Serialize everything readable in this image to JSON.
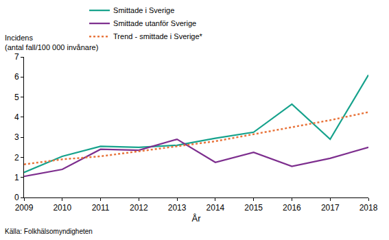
{
  "chart_data": {
    "type": "line",
    "ylabel": "Incidens\n(antal fall/100 000 invånare)",
    "xlabel": "År",
    "source": "Källa: Folkhälsomyndigheten",
    "x": [
      2009,
      2010,
      2011,
      2012,
      2013,
      2014,
      2015,
      2016,
      2017,
      2018
    ],
    "series": [
      {
        "name": "Smittade i Sverige",
        "color": "#16a28c",
        "line_style": "solid",
        "values": [
          1.25,
          2.05,
          2.55,
          2.5,
          2.6,
          2.95,
          3.25,
          4.65,
          2.9,
          6.1
        ]
      },
      {
        "name": "Smittade utanför Sverige",
        "color": "#7d2e8e",
        "line_style": "solid",
        "values": [
          1.05,
          1.4,
          2.4,
          2.35,
          2.9,
          1.75,
          2.25,
          1.55,
          1.95,
          2.5
        ]
      },
      {
        "name": "Trend - smittade i Sverige*",
        "color": "#e8743b",
        "line_style": "dotted",
        "values": [
          1.65,
          1.9,
          2.05,
          2.3,
          2.55,
          2.8,
          3.15,
          3.5,
          3.85,
          4.25
        ]
      }
    ],
    "xlim": [
      2009,
      2018
    ],
    "xticks": [
      2009,
      2010,
      2011,
      2012,
      2013,
      2014,
      2015,
      2016,
      2017,
      2018
    ],
    "ylim": [
      0,
      7
    ],
    "yticks": [
      0,
      1,
      2,
      3,
      4,
      5,
      6,
      7
    ],
    "grid": false,
    "legend": "top"
  }
}
